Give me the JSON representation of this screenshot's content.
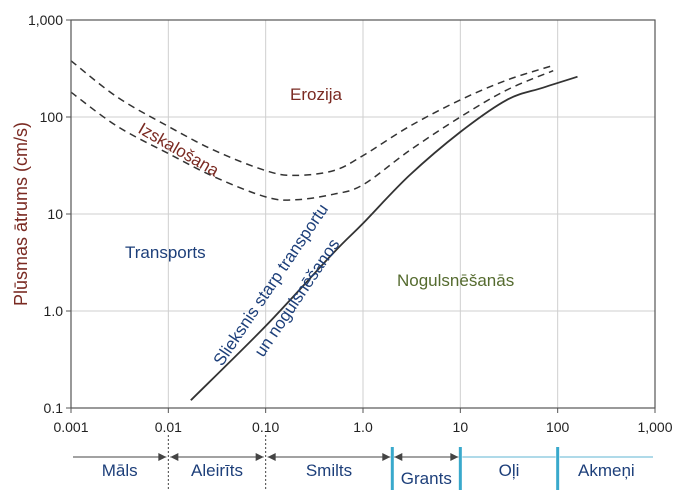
{
  "chart_data": {
    "type": "line",
    "ylabel": "Plūsmas ātrums (cm/s)",
    "xlabel": "",
    "xscale": "log",
    "yscale": "log",
    "xlim": [
      0.001,
      1000
    ],
    "ylim": [
      0.1,
      1000
    ],
    "x_tick_labels": [
      "0.001",
      "0.01",
      "0.10",
      "1.0",
      "10",
      "100",
      "1,000"
    ],
    "y_tick_labels": [
      "0.1",
      "1.0",
      "10",
      "100",
      "1,000"
    ],
    "grid": true,
    "series": [
      {
        "style": "dashed",
        "points": [
          [
            0.001,
            380
          ],
          [
            0.003,
            160
          ],
          [
            0.01,
            80
          ],
          [
            0.03,
            45
          ],
          [
            0.1,
            28
          ],
          [
            0.2,
            25
          ],
          [
            0.5,
            28
          ],
          [
            1,
            40
          ],
          [
            3,
            80
          ],
          [
            10,
            150
          ],
          [
            30,
            240
          ],
          [
            90,
            340
          ]
        ]
      },
      {
        "style": "dashed",
        "points": [
          [
            0.001,
            180
          ],
          [
            0.003,
            80
          ],
          [
            0.01,
            42
          ],
          [
            0.03,
            24
          ],
          [
            0.1,
            15
          ],
          [
            0.2,
            14
          ],
          [
            0.5,
            16
          ],
          [
            1,
            20
          ],
          [
            3,
            45
          ],
          [
            10,
            100
          ],
          [
            30,
            190
          ],
          [
            90,
            300
          ]
        ]
      },
      {
        "style": "solid",
        "points": [
          [
            0.017,
            0.12
          ],
          [
            0.1,
            0.7
          ],
          [
            0.5,
            4
          ],
          [
            1,
            8
          ],
          [
            3,
            25
          ],
          [
            10,
            70
          ],
          [
            30,
            150
          ],
          [
            70,
            200
          ],
          [
            160,
            260
          ]
        ]
      }
    ],
    "annotations": [
      {
        "text": "Erozija",
        "color": "#7a2a22"
      },
      {
        "text": "Izskalošana",
        "color": "#7a2a22"
      },
      {
        "text": "Transports",
        "color": "#1d3f7a"
      },
      {
        "text": "Nogulsnēšanās",
        "color": "#556b2f"
      },
      {
        "text": "Slieksnis starp transportu",
        "color": "#1d3f7a"
      },
      {
        "text": "un nogulsnēšanos",
        "color": "#1d3f7a"
      }
    ],
    "particle_classes": [
      {
        "label": "Māls",
        "from": 0.001,
        "to": 0.01
      },
      {
        "label": "Aleirīts",
        "from": 0.01,
        "to": 0.1
      },
      {
        "label": "Smilts",
        "from": 0.1,
        "to": 2
      },
      {
        "label": "Grants",
        "from": 2,
        "to": 10
      },
      {
        "label": "Oļi",
        "from": 10,
        "to": 100
      },
      {
        "label": "Akmeņi",
        "from": 100,
        "to": 1000
      }
    ]
  }
}
